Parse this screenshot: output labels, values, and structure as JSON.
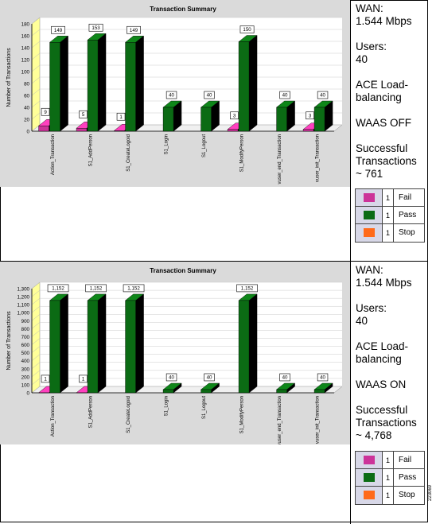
{
  "panels": [
    {
      "info": {
        "wan_label": "WAN:",
        "wan_value": "1.544 Mbps",
        "users_label": "Users:",
        "users_value": "40",
        "ace_line1": "ACE Load-",
        "ace_line2": "balancing",
        "waas": "WAAS OFF",
        "success_line1": "Successful",
        "success_line2": "Transactions",
        "success_value": "~ 761"
      },
      "legend": [
        {
          "num": "1",
          "label": "Fail",
          "color": "#cc3399"
        },
        {
          "num": "1",
          "label": "Pass",
          "color": "#0b6b14"
        },
        {
          "num": "1",
          "label": "Stop",
          "color": "#ff6a1a"
        }
      ]
    },
    {
      "info": {
        "wan_label": "WAN:",
        "wan_value": "1.544 Mbps",
        "users_label": "Users:",
        "users_value": "40",
        "ace_line1": "ACE Load-",
        "ace_line2": "balancing",
        "waas": "WAAS ON",
        "success_line1": "Successful",
        "success_line2": "Transactions",
        "success_value": "~ 4,768"
      },
      "legend": [
        {
          "num": "1",
          "label": "Fail",
          "color": "#cc3399"
        },
        {
          "num": "1",
          "label": "Pass",
          "color": "#0b6b14"
        },
        {
          "num": "1",
          "label": "Stop",
          "color": "#ff6a1a"
        }
      ]
    }
  ],
  "figure_id": "223069",
  "chart_data": [
    {
      "type": "bar",
      "title": "Transaction Summary",
      "ylabel": "Number of Transactions",
      "xlabel": "",
      "ylim": [
        0,
        180
      ],
      "yticks": [
        0,
        20,
        40,
        60,
        80,
        100,
        120,
        140,
        160,
        180
      ],
      "categories": [
        "Action_Transaction",
        "S1_AddPerson",
        "S1_CreateLogoid",
        "S1_Login",
        "S1_Logout",
        "S1_ModifyPerson",
        "vuser_end_Transaction",
        "vuser_init_Transaction"
      ],
      "series": [
        {
          "name": "Fail",
          "color": "#cc3399",
          "values": [
            9,
            5,
            1,
            0,
            0,
            3,
            0,
            3
          ]
        },
        {
          "name": "Pass",
          "color": "#0b6b14",
          "values": [
            149,
            153,
            149,
            40,
            40,
            150,
            40,
            40
          ]
        }
      ],
      "labels": {
        "fail": [
          "9",
          "5",
          "1",
          "",
          "",
          "3",
          "",
          "3"
        ],
        "pass": [
          "149",
          "153",
          "149",
          "40",
          "40",
          "150",
          "40",
          "40"
        ]
      },
      "grid": true
    },
    {
      "type": "bar",
      "title": "Transaction Summary",
      "ylabel": "Number of Transactions",
      "xlabel": "",
      "ylim": [
        0,
        1300
      ],
      "yticks": [
        0,
        100,
        200,
        300,
        400,
        500,
        600,
        700,
        800,
        900,
        1000,
        1100,
        1200,
        1300
      ],
      "ytick_labels": [
        "0",
        "100",
        "200",
        "300",
        "400",
        "500",
        "600",
        "700",
        "800",
        "900",
        "1,000",
        "1,100",
        "1,200",
        "1,300"
      ],
      "categories": [
        "Action_Transaction",
        "S1_AddPerson",
        "S1_CreateLogoid",
        "S1_Login",
        "S1_Logout",
        "S1_ModifyPerson",
        "vuser_end_Transaction",
        "vuser_init_Transaction"
      ],
      "series": [
        {
          "name": "Fail",
          "color": "#cc3399",
          "values": [
            1,
            1,
            0,
            0,
            0,
            0,
            0,
            0
          ]
        },
        {
          "name": "Pass",
          "color": "#0b6b14",
          "values": [
            1152,
            1152,
            1152,
            40,
            40,
            1152,
            40,
            40
          ]
        }
      ],
      "labels": {
        "fail": [
          "1",
          "1",
          "",
          "",
          "",
          "",
          "",
          ""
        ],
        "pass": [
          "1,152",
          "1,152",
          "1,152",
          "40",
          "40",
          "1,152",
          "40",
          "40"
        ]
      },
      "grid": true
    }
  ]
}
